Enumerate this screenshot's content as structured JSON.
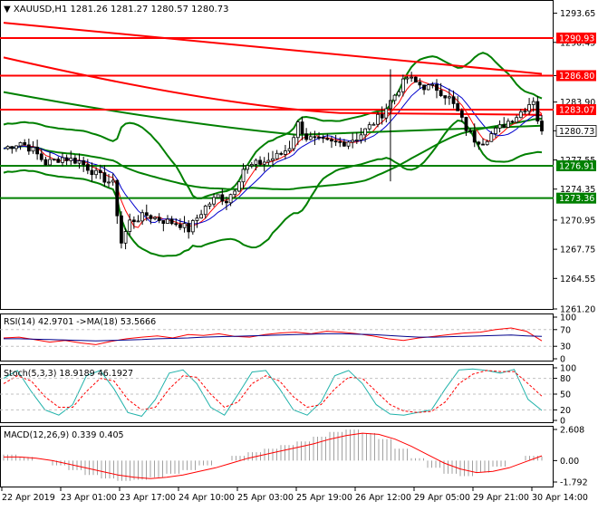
{
  "main_panel": {
    "header": {
      "symbol": "XAUUSD,H1",
      "ohlc": "1281.26 1281.27 1280.57 1280.73"
    },
    "price_ticks": [
      "1293.65",
      "1290.45",
      "1286.80",
      "1283.90",
      "1280.75",
      "1277.55",
      "1274.35",
      "1270.95",
      "1267.75",
      "1264.55",
      "1261.20"
    ],
    "level_lines": [
      {
        "label": "1290.93",
        "value": 1290.93,
        "color": "#ff0000"
      },
      {
        "label": "1286.80",
        "value": 1286.8,
        "color": "#ff0000"
      },
      {
        "label": "1283.07",
        "value": 1283.07,
        "color": "#ff0000"
      },
      {
        "label": "1276.91",
        "value": 1276.91,
        "color": "#008000"
      },
      {
        "label": "1273.36",
        "value": 1273.36,
        "color": "#008000"
      }
    ],
    "current_price": {
      "label": "1280.73",
      "value": 1280.73
    }
  },
  "rsi_panel": {
    "header": "RSI(14) 42.9701 ->MA(18) 53.5666",
    "ticks": [
      "100",
      "70",
      "30",
      "0"
    ]
  },
  "stoch_panel": {
    "header": "Stoch(5,3,3) 18.9189 46.1927",
    "ticks": [
      "100",
      "80",
      "50",
      "20",
      "0"
    ]
  },
  "macd_panel": {
    "header": "MACD(12,26,9) 0.339 0.405",
    "ticks": [
      "2.608",
      "0.00",
      "-1.792"
    ]
  },
  "time_axis": [
    "22 Apr 2019",
    "23 Apr 01:00",
    "23 Apr 17:00",
    "24 Apr 10:00",
    "25 Apr 03:00",
    "25 Apr 19:00",
    "26 Apr 12:00",
    "29 Apr 05:00",
    "29 Apr 21:00",
    "30 Apr 14:00"
  ],
  "colors": {
    "candle": "#000000",
    "bollinger": "#008000",
    "resistance": "#ff0000",
    "support": "#008000",
    "rsi": "#ff0000",
    "rsi_ma": "#00008b",
    "stoch_main": "#20b2aa",
    "stoch_signal": "#ff0000",
    "macd_hist": "#a0a0a0",
    "macd_signal": "#ff0000"
  },
  "chart_data": [
    {
      "type": "candlestick",
      "title": "XAUUSD,H1",
      "ylim": [
        1261.2,
        1295.0
      ],
      "y_ticks": [
        1293.65,
        1290.45,
        1286.8,
        1283.9,
        1280.75,
        1277.55,
        1274.35,
        1270.95,
        1267.75,
        1264.55,
        1261.2
      ],
      "x_tick_labels": [
        "22 Apr 2019",
        "23 Apr 01:00",
        "23 Apr 17:00",
        "24 Apr 10:00",
        "25 Apr 03:00",
        "25 Apr 19:00",
        "26 Apr 12:00",
        "29 Apr 05:00",
        "29 Apr 21:00",
        "30 Apr 14:00"
      ],
      "horizontal_levels": [
        1290.93,
        1286.8,
        1283.07,
        1276.91,
        1273.36
      ],
      "last_close": 1280.73,
      "close_path": [
        [
          0,
          1278.8
        ],
        [
          4,
          1279.5
        ],
        [
          7,
          1278.6
        ],
        [
          10,
          1277.2
        ],
        [
          14,
          1277.8
        ],
        [
          18,
          1277.4
        ],
        [
          22,
          1276.0
        ],
        [
          26,
          1274.9
        ],
        [
          28,
          1268.5
        ],
        [
          30,
          1270.8
        ],
        [
          34,
          1271.5
        ],
        [
          38,
          1270.9
        ],
        [
          42,
          1270.5
        ],
        [
          44,
          1269.9
        ],
        [
          46,
          1271.2
        ],
        [
          48,
          1272.4
        ],
        [
          51,
          1273.6
        ],
        [
          53,
          1273.1
        ],
        [
          55,
          1274.5
        ],
        [
          57,
          1276.6
        ],
        [
          60,
          1277.1
        ],
        [
          63,
          1277.5
        ],
        [
          66,
          1278.2
        ],
        [
          68,
          1279.0
        ],
        [
          70,
          1281.5
        ],
        [
          72,
          1280.0
        ],
        [
          75,
          1279.6
        ],
        [
          78,
          1279.4
        ],
        [
          81,
          1279.5
        ],
        [
          84,
          1280.0
        ],
        [
          87,
          1281.2
        ],
        [
          90,
          1282.6
        ],
        [
          92,
          1284.0
        ],
        [
          94,
          1285.4
        ],
        [
          96,
          1286.6
        ],
        [
          98,
          1286.0
        ],
        [
          100,
          1285.6
        ],
        [
          103,
          1285.4
        ],
        [
          106,
          1284.3
        ],
        [
          108,
          1282.8
        ],
        [
          110,
          1281.0
        ],
        [
          112,
          1279.8
        ],
        [
          114,
          1279.6
        ],
        [
          116,
          1280.4
        ],
        [
          118,
          1281.1
        ],
        [
          120,
          1281.8
        ],
        [
          122,
          1282.4
        ],
        [
          124,
          1283.3
        ],
        [
          126,
          1284.2
        ],
        [
          127,
          1282.0
        ],
        [
          128,
          1280.73
        ]
      ]
    },
    {
      "type": "line",
      "title": "RSI(14) 42.9701 ->MA(18) 53.5666",
      "ylim": [
        0,
        100
      ],
      "y_ticks": [
        100,
        70,
        30,
        0
      ],
      "series": [
        {
          "name": "RSI(14)",
          "values": [
            50,
            52,
            46,
            40,
            44,
            38,
            34,
            42,
            48,
            52,
            55,
            50,
            58,
            56,
            60,
            54,
            52,
            58,
            62,
            64,
            60,
            66,
            64,
            60,
            55,
            48,
            44,
            50,
            54,
            58,
            62,
            64,
            70,
            74,
            66,
            43
          ]
        },
        {
          "name": "MA(18)",
          "values": [
            48,
            48,
            47,
            46,
            45,
            44,
            43,
            44,
            45,
            46,
            48,
            49,
            50,
            52,
            53,
            54,
            55,
            56,
            57,
            58,
            59,
            60,
            60,
            59,
            58,
            56,
            54,
            52,
            52,
            53,
            54,
            55,
            56,
            57,
            55,
            53.6
          ]
        }
      ]
    },
    {
      "type": "line",
      "title": "Stoch(5,3,3) 18.9189 46.1927",
      "ylim": [
        0,
        100
      ],
      "y_ticks": [
        100,
        80,
        50,
        20,
        0
      ],
      "series": [
        {
          "name": "%K",
          "values": [
            80,
            95,
            55,
            20,
            10,
            30,
            85,
            95,
            60,
            15,
            8,
            40,
            90,
            96,
            70,
            25,
            10,
            50,
            92,
            95,
            60,
            20,
            10,
            35,
            85,
            95,
            70,
            30,
            12,
            10,
            15,
            20,
            60,
            96,
            98,
            95,
            90,
            97,
            40,
            19
          ]
        },
        {
          "name": "%D",
          "values": [
            70,
            85,
            75,
            45,
            25,
            25,
            55,
            80,
            75,
            40,
            20,
            25,
            60,
            85,
            82,
            50,
            25,
            35,
            70,
            85,
            75,
            45,
            25,
            30,
            60,
            82,
            80,
            55,
            30,
            18,
            15,
            17,
            35,
            70,
            88,
            95,
            93,
            93,
            70,
            46
          ]
        }
      ]
    },
    {
      "type": "bar",
      "title": "MACD(12,26,9) 0.339 0.405",
      "ylim": [
        -1.792,
        2.608
      ],
      "y_ticks": [
        2.608,
        0.0,
        -1.792
      ],
      "series": [
        {
          "name": "MACD",
          "values": [
            0.5,
            0.3,
            0.0,
            -0.4,
            -0.8,
            -1.2,
            -1.5,
            -1.7,
            -1.6,
            -1.4,
            -1.1,
            -0.8,
            -0.4,
            0.0,
            0.4,
            0.7,
            1.0,
            1.3,
            1.6,
            2.0,
            2.4,
            2.6,
            2.3,
            1.8,
            1.0,
            0.2,
            -0.6,
            -1.1,
            -1.3,
            -1.0,
            -0.5,
            0.0,
            0.4,
            0.34
          ]
        },
        {
          "name": "Signal",
          "values": [
            0.3,
            0.3,
            0.2,
            0.0,
            -0.3,
            -0.6,
            -0.9,
            -1.2,
            -1.4,
            -1.5,
            -1.4,
            -1.2,
            -0.9,
            -0.6,
            -0.2,
            0.2,
            0.5,
            0.8,
            1.1,
            1.4,
            1.8,
            2.1,
            2.3,
            2.2,
            1.8,
            1.2,
            0.5,
            -0.2,
            -0.7,
            -1.0,
            -0.9,
            -0.6,
            -0.1,
            0.4
          ]
        }
      ]
    }
  ]
}
